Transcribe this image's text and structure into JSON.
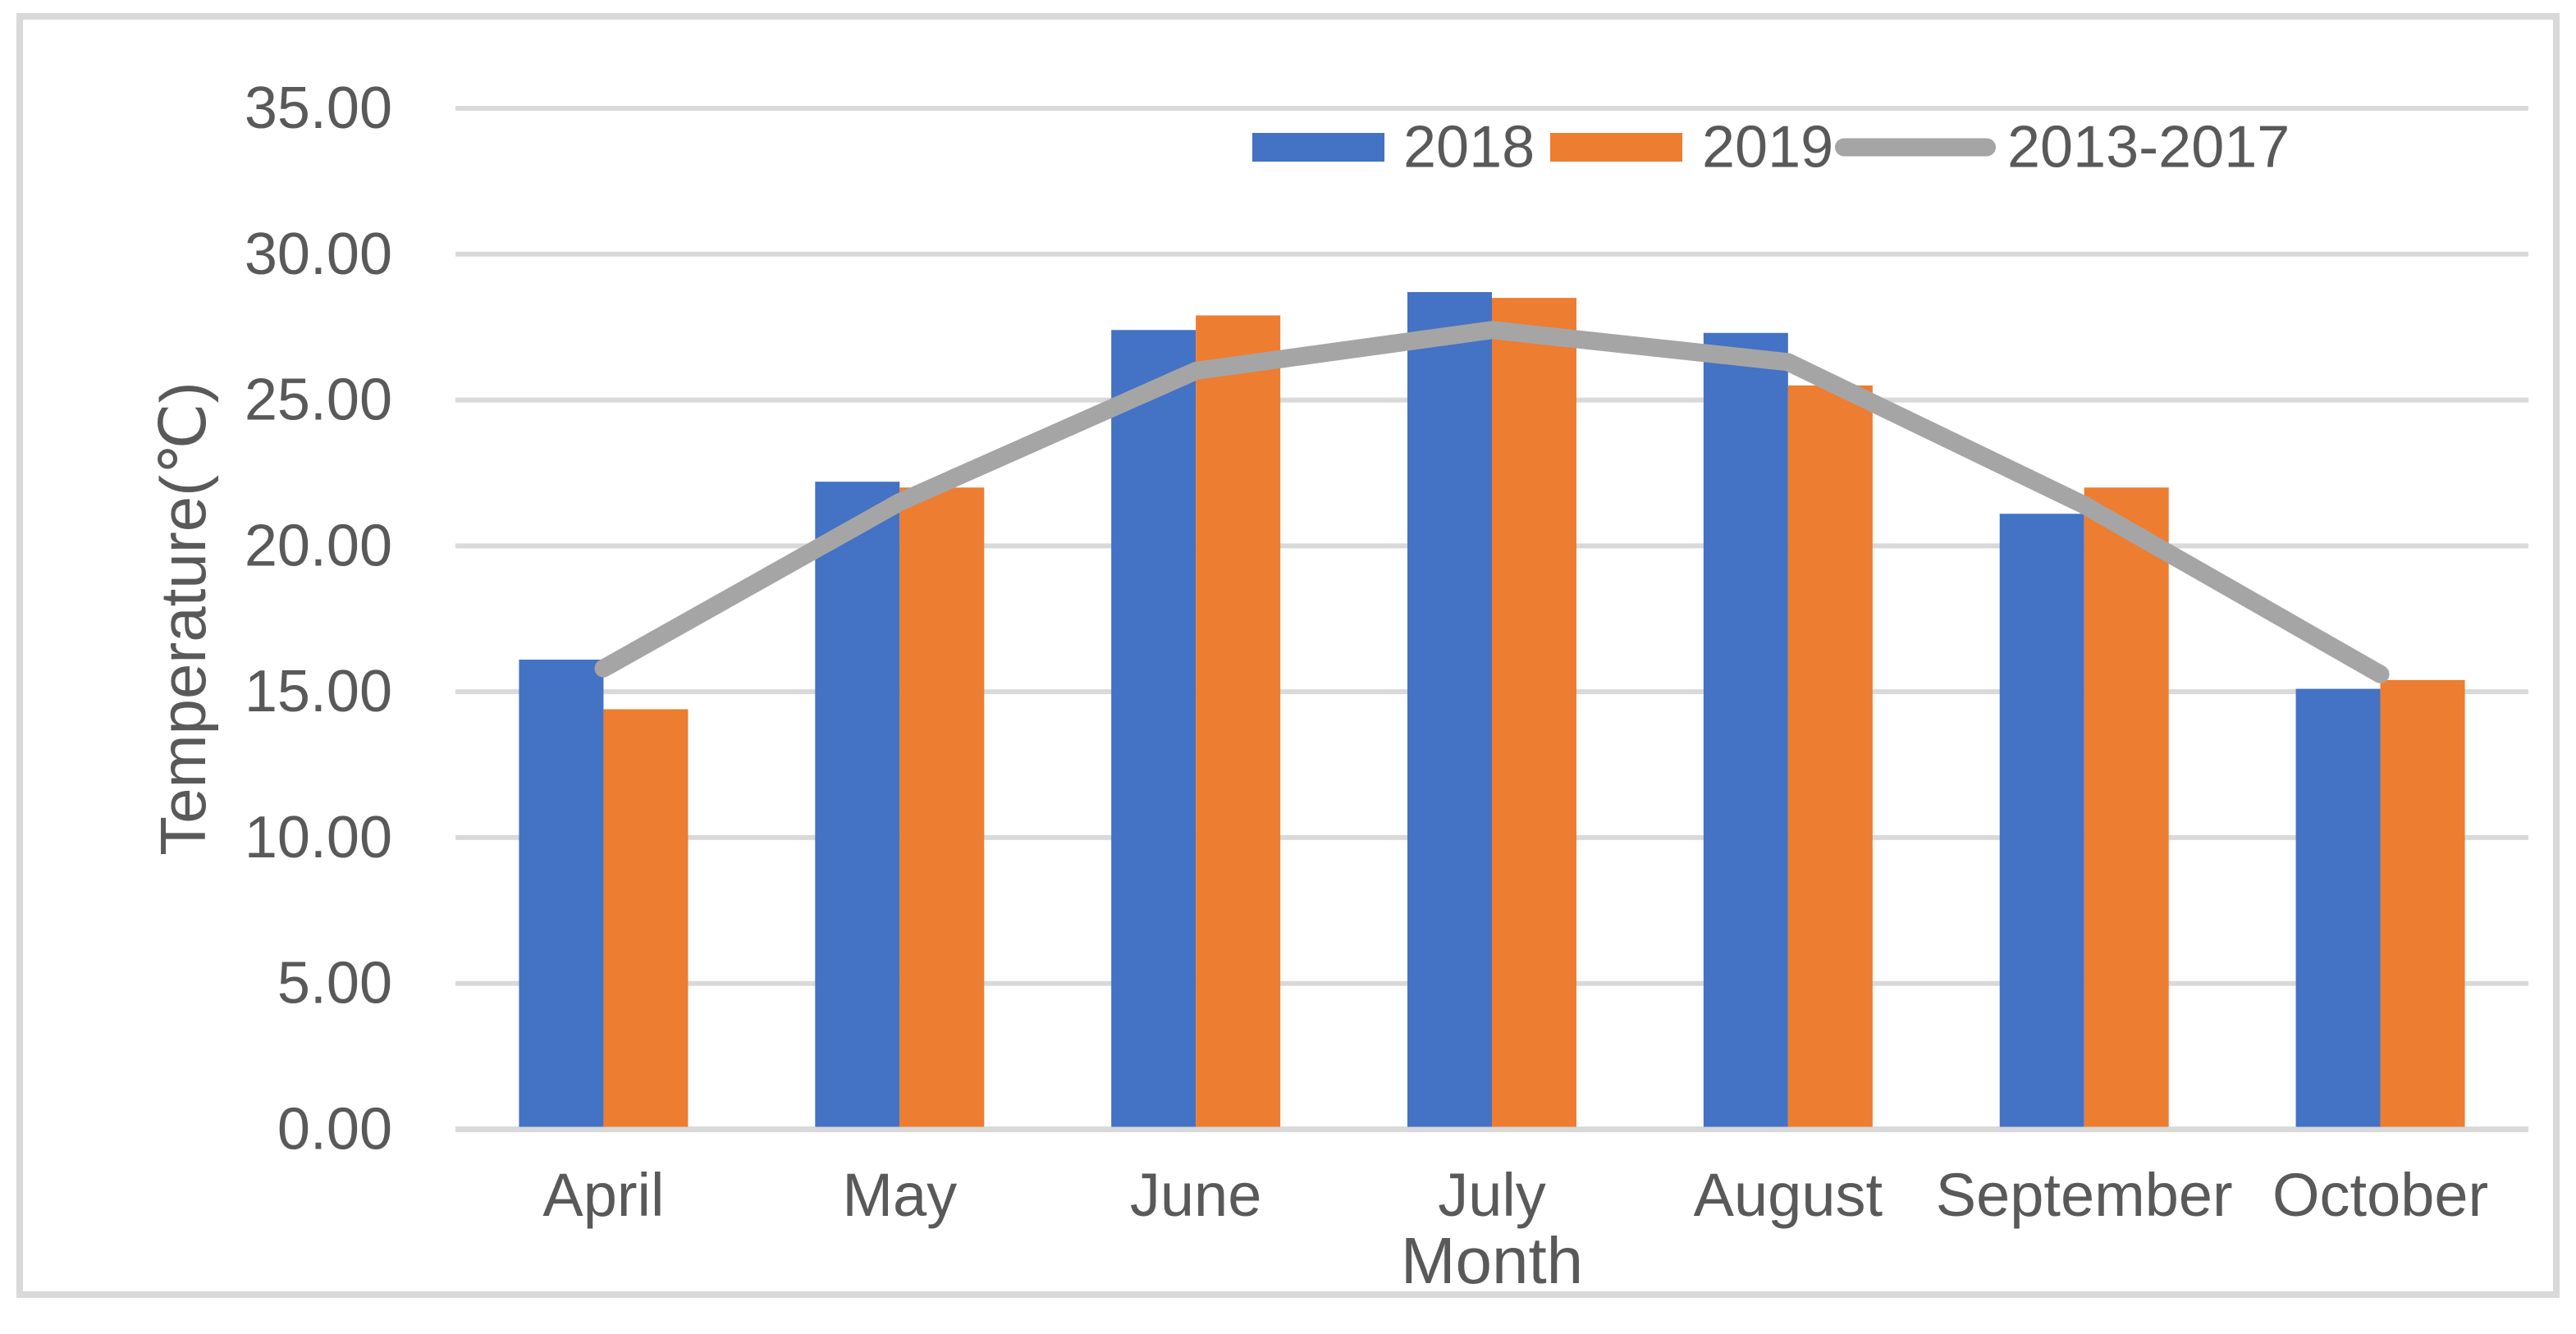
{
  "chart_data": {
    "type": "bar",
    "subtype": "clustered-bars-with-line-overlay",
    "categories": [
      "April",
      "May",
      "June",
      "July",
      "August",
      "September",
      "October"
    ],
    "series": [
      {
        "name": "2018",
        "type": "bar",
        "color": "#4472C4",
        "values": [
          16.1,
          22.2,
          27.4,
          28.7,
          27.3,
          21.1,
          15.1
        ]
      },
      {
        "name": "2019",
        "type": "bar",
        "color": "#ED7D31",
        "values": [
          14.4,
          22.0,
          27.9,
          28.5,
          25.5,
          22.0,
          15.4
        ]
      },
      {
        "name": "2013-2017",
        "type": "line",
        "color": "#A5A5A5",
        "values": [
          15.8,
          21.5,
          26.0,
          27.4,
          26.3,
          21.4,
          15.6
        ]
      }
    ],
    "title": "",
    "xlabel": "Month",
    "ylabel": "Temperature(℃)",
    "ylim": [
      0,
      35
    ],
    "ytick_step": 5,
    "ytick_format_decimals": 2,
    "grid": "horizontal-on",
    "grid_color": "#D9D9D9",
    "axis_line_color": "#D9D9D9",
    "text_color": "#595959",
    "legend_position": "top-inside",
    "legend_entries": [
      "2018",
      "2019",
      "2013-2017"
    ],
    "frame_border_color": "#D9D9D9",
    "background_color": "#FFFFFF"
  }
}
